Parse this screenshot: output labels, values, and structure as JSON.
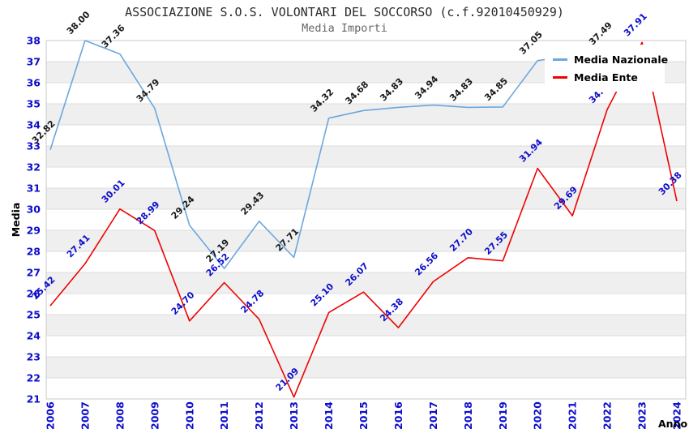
{
  "header": {
    "title": "ASSOCIAZIONE S.O.S. VOLONTARI DEL SOCCORSO (c.f.92010450929)",
    "subtitle": "Media Importi"
  },
  "chart_data": {
    "type": "line",
    "title": "ASSOCIAZIONE S.O.S. VOLONTARI DEL SOCCORSO (c.f.92010450929)",
    "subtitle": "Media Importi",
    "xlabel": "Anno",
    "ylabel": "Media",
    "x": [
      2006,
      2007,
      2008,
      2009,
      2010,
      2011,
      2012,
      2013,
      2014,
      2015,
      2016,
      2017,
      2018,
      2019,
      2020,
      2021,
      2022,
      2023,
      2024
    ],
    "ylim": [
      21,
      38
    ],
    "y_ticks": [
      21,
      22,
      23,
      24,
      25,
      26,
      27,
      28,
      29,
      30,
      31,
      32,
      33,
      34,
      35,
      36,
      37,
      38
    ],
    "grid": "horizontal unit bands, alternating white / light gray",
    "legend_position": "top-right",
    "series": [
      {
        "name": "Media Nazionale",
        "color": "#6ba7de",
        "label_color": "#1a1a1a",
        "values": [
          32.82,
          38.0,
          37.36,
          34.79,
          29.24,
          27.19,
          29.43,
          27.71,
          34.32,
          34.68,
          34.83,
          34.94,
          34.83,
          34.85,
          37.05,
          null,
          37.49,
          null,
          null
        ],
        "labels": [
          "32.82",
          "38.00",
          "37.36",
          "34.79",
          "29.24",
          "27.19",
          "29.43",
          "27.71",
          "34.32",
          "34.68",
          "34.83",
          "34.94",
          "34.83",
          "34.85",
          "37.05",
          null,
          "37.49",
          null,
          null
        ]
      },
      {
        "name": "Media Ente",
        "color": "#ee0202",
        "label_color": "#0d0dcc",
        "values": [
          25.42,
          27.41,
          30.01,
          28.99,
          24.7,
          26.52,
          24.78,
          21.09,
          25.1,
          26.07,
          24.38,
          26.56,
          27.7,
          27.55,
          31.94,
          29.69,
          34.73,
          37.91,
          30.38
        ],
        "labels": [
          "25.42",
          "27.41",
          "30.01",
          "28.99",
          "24.70",
          "26.52",
          "24.78",
          "21.09",
          "25.10",
          "26.07",
          "24.38",
          "26.56",
          "27.70",
          "27.55",
          "31.94",
          "29.69",
          "34.73",
          "37.91",
          "30.38"
        ]
      }
    ],
    "style": {
      "tick_label_color": "#0d0dcc",
      "axis_title_color": "#000000",
      "band_gray": "#efefef",
      "band_white": "#ffffff",
      "gridline_color": "#dedede",
      "plot_border_color": "#c9c9c9"
    }
  }
}
